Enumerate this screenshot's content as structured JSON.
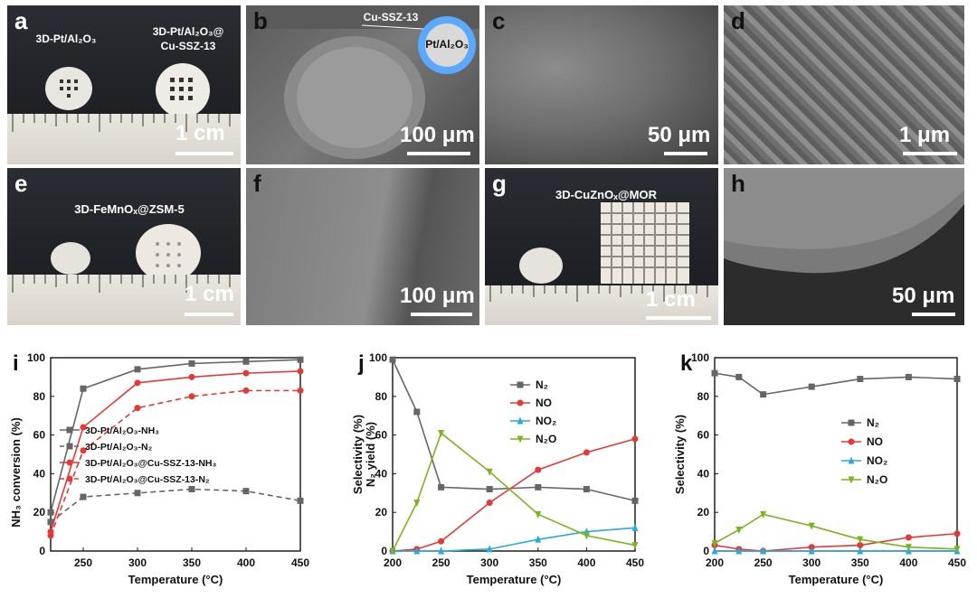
{
  "panels": {
    "a": {
      "letter": "a",
      "label_left": "3D-Pt/Al₂O₃",
      "label_right_1": "3D-Pt/Al₂O₃@",
      "label_right_2": "Cu-SSZ-13",
      "scale": "1 cm"
    },
    "b": {
      "letter": "b",
      "shell_label": "Cu-SSZ-13",
      "core_label": "Pt/Al₂O₃",
      "scale": "100 μm"
    },
    "c": {
      "letter": "c",
      "scale": "50 μm"
    },
    "d": {
      "letter": "d",
      "scale": "1 μm"
    },
    "e": {
      "letter": "e",
      "label": "3D-FeMnOₓ@ZSM-5",
      "scale": "1 cm"
    },
    "f": {
      "letter": "f",
      "scale": "100 μm"
    },
    "g": {
      "letter": "g",
      "label": "3D-CuZnOₓ@MOR",
      "scale": "1 cm"
    },
    "h": {
      "letter": "h",
      "scale": "50 μm"
    }
  },
  "chart_data": [
    {
      "id": "i",
      "type": "line",
      "letter": "i",
      "xlabel": "Temperature (°C)",
      "ylabel": "NH₃ conversion (%)",
      "ylabel2": "N₂ yield (%)",
      "xlim": [
        220,
        450
      ],
      "ylim": [
        0,
        100
      ],
      "xticks": [
        250,
        300,
        350,
        400,
        450
      ],
      "yticks": [
        0,
        20,
        40,
        60,
        80,
        100
      ],
      "series": [
        {
          "name": "3D-Pt/Al₂O₃-NH₃",
          "color": "#666666",
          "dash": false,
          "x": [
            220,
            250,
            300,
            350,
            400,
            450
          ],
          "y": [
            20,
            84,
            94,
            97,
            98,
            99
          ]
        },
        {
          "name": "3D-Pt/Al₂O₃-N₂",
          "color": "#666666",
          "dash": true,
          "x": [
            220,
            250,
            300,
            350,
            400,
            450
          ],
          "y": [
            15,
            28,
            30,
            32,
            31,
            26
          ]
        },
        {
          "name": "3D-Pt/Al₂O₃@Cu-SSZ-13-NH₃",
          "color": "#e53935",
          "dash": false,
          "x": [
            220,
            250,
            300,
            350,
            400,
            450
          ],
          "y": [
            10,
            64,
            87,
            90,
            92,
            93
          ]
        },
        {
          "name": "3D-Pt/Al₂O₃@Cu-SSZ-13-N₂",
          "color": "#e53935",
          "dash": true,
          "x": [
            220,
            250,
            300,
            350,
            400,
            450
          ],
          "y": [
            8,
            52,
            74,
            80,
            83,
            83
          ]
        }
      ]
    },
    {
      "id": "j",
      "type": "line",
      "letter": "j",
      "xlabel": "Temperature (°C)",
      "ylabel": "Selectivity (%)",
      "xlim": [
        200,
        450
      ],
      "ylim": [
        0,
        100
      ],
      "xticks": [
        200,
        250,
        300,
        350,
        400,
        450
      ],
      "yticks": [
        0,
        20,
        40,
        60,
        80,
        100
      ],
      "series": [
        {
          "name": "N₂",
          "color": "#666666",
          "marker": "square",
          "x": [
            200,
            225,
            250,
            300,
            350,
            400,
            450
          ],
          "y": [
            99,
            72,
            33,
            32,
            33,
            32,
            26
          ]
        },
        {
          "name": "NO",
          "color": "#e53935",
          "marker": "circle",
          "x": [
            200,
            225,
            250,
            300,
            350,
            400,
            450
          ],
          "y": [
            0,
            1,
            5,
            25,
            42,
            51,
            58
          ]
        },
        {
          "name": "NO₂",
          "color": "#29a9e0",
          "marker": "triangle-up",
          "x": [
            200,
            225,
            250,
            300,
            350,
            400,
            450
          ],
          "y": [
            0,
            0,
            0,
            1,
            6,
            10,
            12
          ]
        },
        {
          "name": "N₂O",
          "color": "#7cb320",
          "marker": "triangle-down",
          "x": [
            200,
            225,
            250,
            300,
            350,
            400,
            450
          ],
          "y": [
            0,
            25,
            61,
            41,
            19,
            8,
            3
          ]
        }
      ]
    },
    {
      "id": "k",
      "type": "line",
      "letter": "k",
      "xlabel": "Temperature (°C)",
      "ylabel": "Selectivity (%)",
      "xlim": [
        200,
        450
      ],
      "ylim": [
        0,
        100
      ],
      "xticks": [
        200,
        250,
        300,
        350,
        400,
        450
      ],
      "yticks": [
        0,
        20,
        40,
        60,
        80,
        100
      ],
      "series": [
        {
          "name": "N₂",
          "color": "#666666",
          "marker": "square",
          "x": [
            200,
            225,
            250,
            300,
            350,
            400,
            450
          ],
          "y": [
            92,
            90,
            81,
            85,
            89,
            90,
            89
          ]
        },
        {
          "name": "NO",
          "color": "#e53935",
          "marker": "circle",
          "x": [
            200,
            225,
            250,
            300,
            350,
            400,
            450
          ],
          "y": [
            3,
            1,
            0,
            2,
            3,
            7,
            9
          ]
        },
        {
          "name": "NO₂",
          "color": "#29a9e0",
          "marker": "triangle-up",
          "x": [
            200,
            225,
            250,
            300,
            350,
            400,
            450
          ],
          "y": [
            0,
            0,
            0,
            0,
            0,
            0,
            0
          ]
        },
        {
          "name": "N₂O",
          "color": "#7cb320",
          "marker": "triangle-down",
          "x": [
            200,
            225,
            250,
            300,
            350,
            400,
            450
          ],
          "y": [
            4,
            11,
            19,
            13,
            6,
            2,
            1
          ]
        }
      ]
    }
  ]
}
